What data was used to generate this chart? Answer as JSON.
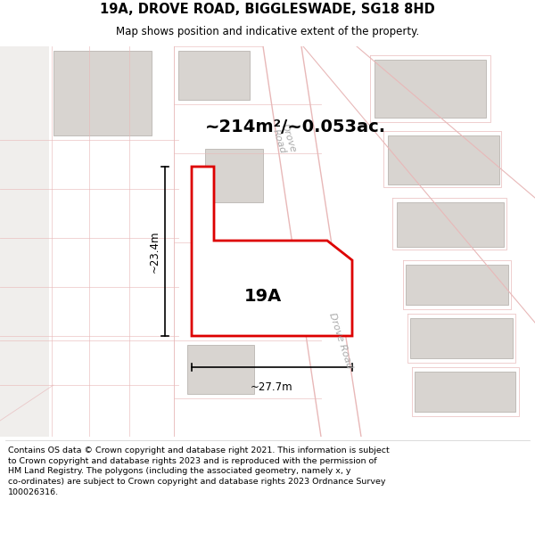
{
  "title": "19A, DROVE ROAD, BIGGLESWADE, SG18 8HD",
  "subtitle": "Map shows position and indicative extent of the property.",
  "area_text": "~214m²/~0.053ac.",
  "label_19A": "19A",
  "dim_vertical": "~23.4m",
  "dim_horizontal": "~27.7m",
  "road_label_top": "Drove\nRoad",
  "road_label_right": "Drove Road",
  "footer": "Contains OS data © Crown copyright and database right 2021. This information is subject\nto Crown copyright and database rights 2023 and is reproduced with the permission of\nHM Land Registry. The polygons (including the associated geometry, namely x, y\nco-ordinates) are subject to Crown copyright and database rights 2023 Ordnance Survey\n100026316.",
  "map_bg": "#ffffff",
  "plot_stroke": "#dd0000",
  "road_line_color": "#e8b8b8",
  "building_color": "#d8d4d0",
  "building_stroke": "#c0bcb8",
  "footer_bg": "#ffffff",
  "title_color": "#000000"
}
